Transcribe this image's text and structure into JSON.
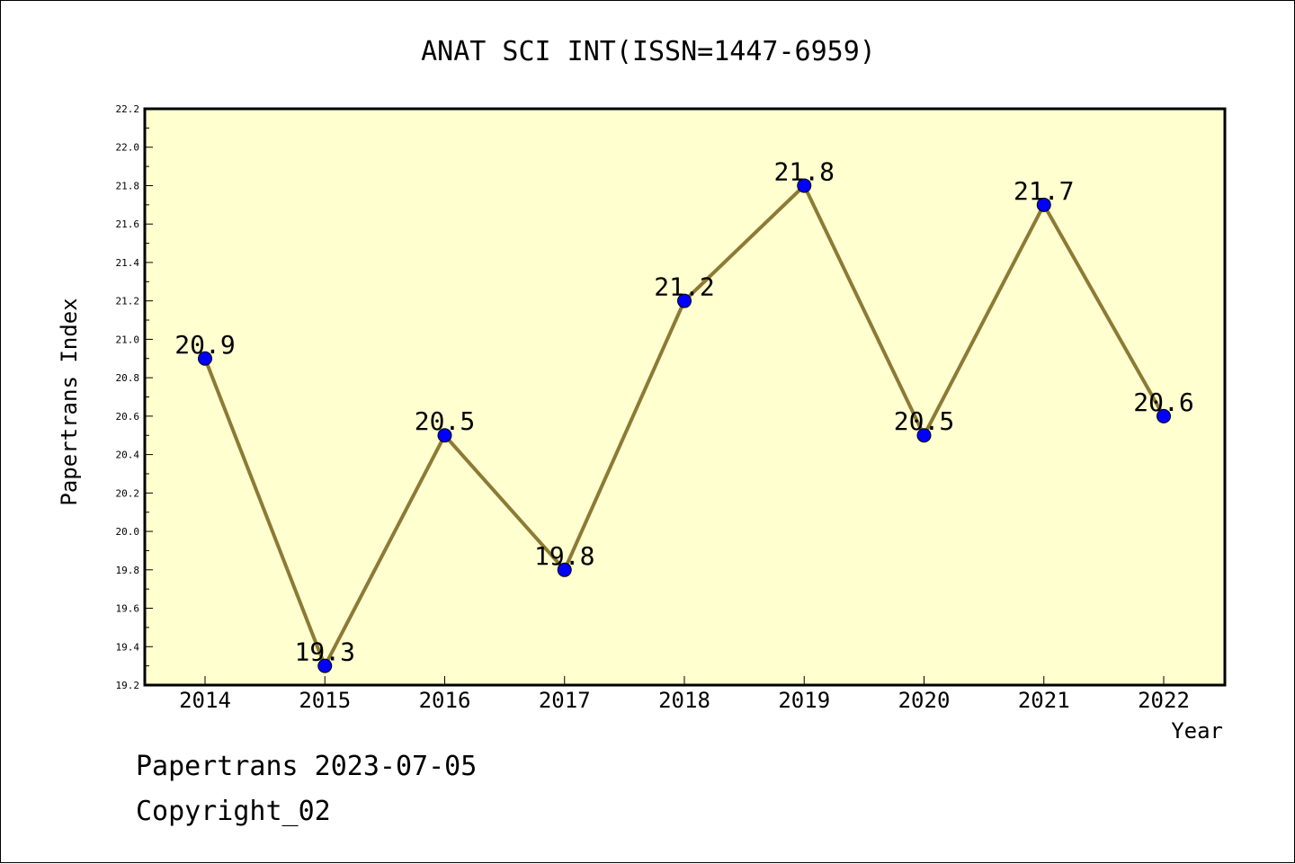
{
  "chart_data": {
    "type": "line",
    "title": "ANAT SCI INT(ISSN=1447-6959)",
    "xlabel": "Year",
    "ylabel": "Papertrans Index",
    "categories": [
      "2014",
      "2015",
      "2016",
      "2017",
      "2018",
      "2019",
      "2020",
      "2021",
      "2022"
    ],
    "series": [
      {
        "values": [
          20.9,
          19.3,
          20.5,
          19.8,
          21.2,
          21.8,
          20.5,
          21.7,
          20.6
        ],
        "data_labels": [
          "20.9",
          "19.3",
          "20.5",
          "19.8",
          "21.2",
          "21.8",
          "20.5",
          "21.7",
          "20.6"
        ],
        "line_color": "#8c7a35",
        "marker_color": "#0000ff"
      }
    ],
    "ylim": [
      19.2,
      22.2
    ],
    "yticks": [
      "19.2",
      "19.4",
      "19.6",
      "19.8",
      "20.0",
      "20.2",
      "20.4",
      "20.6",
      "20.8",
      "21.0",
      "21.2",
      "21.4",
      "21.6",
      "21.8",
      "22.0",
      "22.2"
    ],
    "grid": false,
    "plot_background": "#ffffd0"
  },
  "footer": {
    "line1": "Papertrans 2023-07-05",
    "line2": "Copyright_02"
  }
}
